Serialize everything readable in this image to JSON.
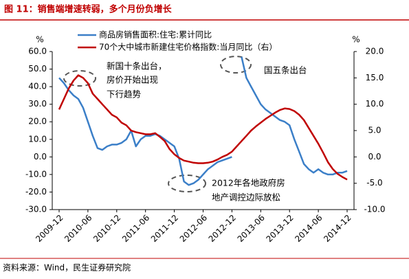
{
  "chart_data": {
    "type": "line",
    "title": "图 11：销售端增速转弱，多个月份负增长",
    "source": "资料来源：Wind，民生证券研究院",
    "y_unit": "%",
    "y2_unit": "%",
    "categories": [
      "2009-12",
      null,
      null,
      null,
      null,
      null,
      "2010-06",
      null,
      null,
      null,
      null,
      null,
      "2010-12",
      null,
      null,
      null,
      null,
      null,
      "2011-06",
      null,
      null,
      null,
      null,
      null,
      "2011-12",
      null,
      null,
      null,
      null,
      null,
      "2012-06",
      null,
      null,
      null,
      null,
      null,
      "2012-12",
      null,
      null,
      null,
      null,
      null,
      "2013-06",
      null,
      null,
      null,
      null,
      null,
      "2013-12",
      null,
      null,
      null,
      null,
      null,
      "2014-06",
      null,
      null,
      null,
      null,
      null,
      "2014-12"
    ],
    "series": [
      {
        "name": "商品房销售面积:住宅:累计同比",
        "color": "#3b7fc8",
        "axis": "y",
        "values": [
          45,
          42,
          38,
          35,
          33,
          28,
          20,
          12,
          5,
          4,
          6,
          7,
          7,
          8,
          10,
          15,
          6,
          10,
          12,
          12,
          13,
          12,
          10,
          8,
          6,
          -1,
          -14,
          -16,
          -15,
          -13,
          -10,
          -7,
          -5,
          -3,
          -2,
          -1,
          0,
          null,
          57,
          45,
          40,
          35,
          30,
          27,
          25,
          23,
          21,
          20,
          18,
          10,
          3,
          -4,
          -7,
          -9,
          -7,
          -9,
          -10,
          -10,
          -9,
          -9,
          -8
        ]
      },
      {
        "name": "70个大中城市新建住宅价格指数:当月同比（右）",
        "color": "#c00000",
        "axis": "y2",
        "values": [
          9,
          11,
          13,
          14.5,
          15.5,
          15,
          14,
          12,
          11,
          10,
          9,
          8,
          7.5,
          6.5,
          6,
          5,
          4.7,
          4.5,
          4.3,
          4.3,
          4.5,
          3.8,
          3,
          1.5,
          0.5,
          -0.2,
          -0.7,
          -0.9,
          -1.1,
          -1.2,
          -1.2,
          -1.1,
          -0.9,
          -0.5,
          0,
          0.4,
          1,
          2,
          3,
          4,
          5,
          5.8,
          6.5,
          7.2,
          7.8,
          8.4,
          8.9,
          9.2,
          9.1,
          8.7,
          8,
          7,
          5.5,
          4,
          2.5,
          0.8,
          -1,
          -2.3,
          -3.2,
          -3.8,
          -4.3
        ]
      }
    ],
    "ylim": [
      -30,
      60
    ],
    "yticks": [
      {
        "value": 60,
        "label": "60.0"
      },
      {
        "value": 50,
        "label": "50.0"
      },
      {
        "value": 40,
        "label": "40.0"
      },
      {
        "value": 30,
        "label": "30.0"
      },
      {
        "value": 20,
        "label": "20.0"
      },
      {
        "value": 10,
        "label": "10.0"
      },
      {
        "value": 0,
        "label": "0.0"
      },
      {
        "value": -10,
        "label": "-10.0"
      },
      {
        "value": -20,
        "label": "-20.0"
      },
      {
        "value": -30,
        "label": "-30.0"
      }
    ],
    "y2lim": [
      -10,
      20
    ],
    "y2ticks": [
      {
        "value": 20,
        "label": "20.0"
      },
      {
        "value": 15,
        "label": "15.0"
      },
      {
        "value": 10,
        "label": "10.0"
      },
      {
        "value": 5,
        "label": "5.0"
      },
      {
        "value": 0,
        "label": "0.0"
      },
      {
        "value": -5,
        "label": "-5.0"
      },
      {
        "value": -10,
        "label": "-10.0"
      }
    ],
    "annotations": [
      "新国十条出台，",
      "房价开始出现",
      "下行趋势",
      "国五条出台",
      "2012年各地政府房",
      "地产调控边际放松"
    ],
    "grid": false
  }
}
